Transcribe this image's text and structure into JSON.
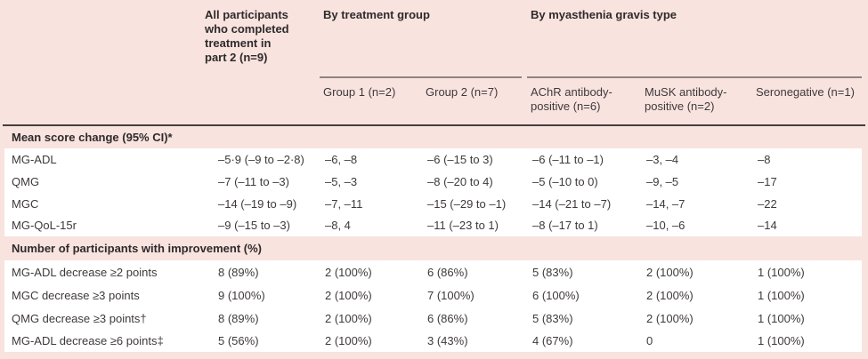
{
  "table": {
    "colors": {
      "background_pink": "#f8e3df",
      "row_band_white": "#ffffff",
      "spanner_rule": "#8d8384",
      "heavy_rule": "#453e3f",
      "heading_text": "#2f2a2b",
      "body_text": "#3f393b"
    },
    "columns": {
      "all_participants": "All participants\nwho completed\ntreatment in\npart 2 (n=9)",
      "by_treatment_group": "By treatment group",
      "by_mg_type": "By myasthenia gravis type",
      "group1": "Group 1 (n=2)",
      "group2": "Group 2 (n=7)",
      "achr": "AChR antibody-\npositive (n=6)",
      "musk": "MuSK antibody-\npositive (n=2)",
      "seronegative": "Seronegative (n=1)"
    },
    "sections": [
      {
        "header": "Mean score change (95% CI)*",
        "rows": [
          {
            "label": "MG-ADL",
            "values": [
              "–5·9 (–9 to –2·8)",
              "–6, –8",
              "–6 (–15 to 3)",
              "–6 (–11 to –1)",
              "–3, –4",
              "–8"
            ]
          },
          {
            "label": "QMG",
            "values": [
              "–7 (–11 to –3)",
              "–5, –3",
              "–8 (–20 to 4)",
              "–5 (–10 to 0)",
              "–9, –5",
              "–17"
            ]
          },
          {
            "label": "MGC",
            "values": [
              "–14 (–19 to –9)",
              "–7, –11",
              "–15 (–29 to –1)",
              "–14 (–21 to –7)",
              "–14, –7",
              "–22"
            ]
          },
          {
            "label": "MG-QoL-15r",
            "values": [
              "–9 (–15 to –3)",
              "–8, 4",
              "–11 (–23 to 1)",
              "–8 (–17 to 1)",
              "–10, –6",
              "–14"
            ]
          }
        ]
      },
      {
        "header": "Number of participants with improvement (%)",
        "rows": [
          {
            "label": "MG-ADL decrease ≥2 points",
            "values": [
              "8 (89%)",
              "2 (100%)",
              "6 (86%)",
              "5 (83%)",
              "2 (100%)",
              "1 (100%)"
            ]
          },
          {
            "label": "MGC decrease ≥3 points",
            "values": [
              "9 (100%)",
              "2 (100%)",
              "7 (100%)",
              "6 (100%)",
              "2 (100%)",
              "1 (100%)"
            ]
          },
          {
            "label": "QMG decrease ≥3 points†",
            "values": [
              "8 (89%)",
              "2 (100%)",
              "6 (86%)",
              "5 (83%)",
              "2 (100%)",
              "1 (100%)"
            ]
          },
          {
            "label": "MG-ADL decrease ≥6 points‡",
            "values": [
              "5 (56%)",
              "2 (100%)",
              "3 (43%)",
              "4 (67%)",
              "0",
              "1 (100%)"
            ]
          }
        ]
      }
    ]
  }
}
